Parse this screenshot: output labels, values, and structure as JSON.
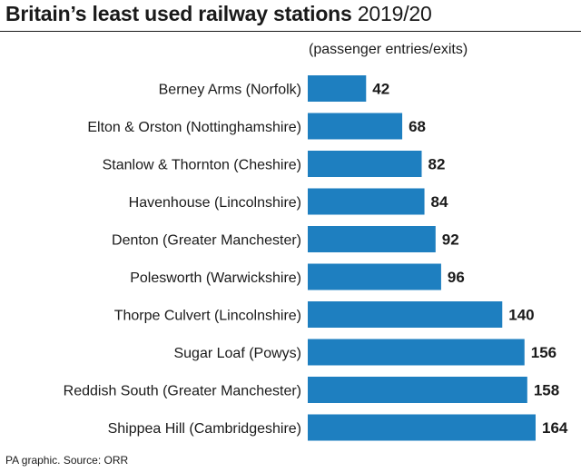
{
  "title": {
    "bold": "Britain’s least used railway stations",
    "light": "2019/20"
  },
  "unit_label": "(passenger entries/exits)",
  "source": "PA graphic. Source: ORR",
  "colors": {
    "bar": "#1e7fc0",
    "text": "#1a1a1a"
  },
  "chart_data": {
    "type": "bar",
    "orientation": "horizontal",
    "categories": [
      "Berney Arms (Norfolk)",
      "Elton & Orston (Nottinghamshire)",
      "Stanlow & Thornton (Cheshire)",
      "Havenhouse (Lincolnshire)",
      "Denton (Greater Manchester)",
      "Polesworth (Warwickshire)",
      "Thorpe Culvert (Lincolnshire)",
      "Sugar Loaf (Powys)",
      "Reddish South (Greater Manchester)",
      "Shippea Hill (Cambridgeshire)"
    ],
    "values": [
      42,
      68,
      82,
      84,
      92,
      96,
      140,
      156,
      158,
      164
    ],
    "data_labels": [
      "42",
      "68",
      "82",
      "84",
      "92",
      "96",
      "140",
      "156",
      "158",
      "164"
    ],
    "xlim": [
      0,
      164
    ],
    "grid": false,
    "legend": "none"
  }
}
